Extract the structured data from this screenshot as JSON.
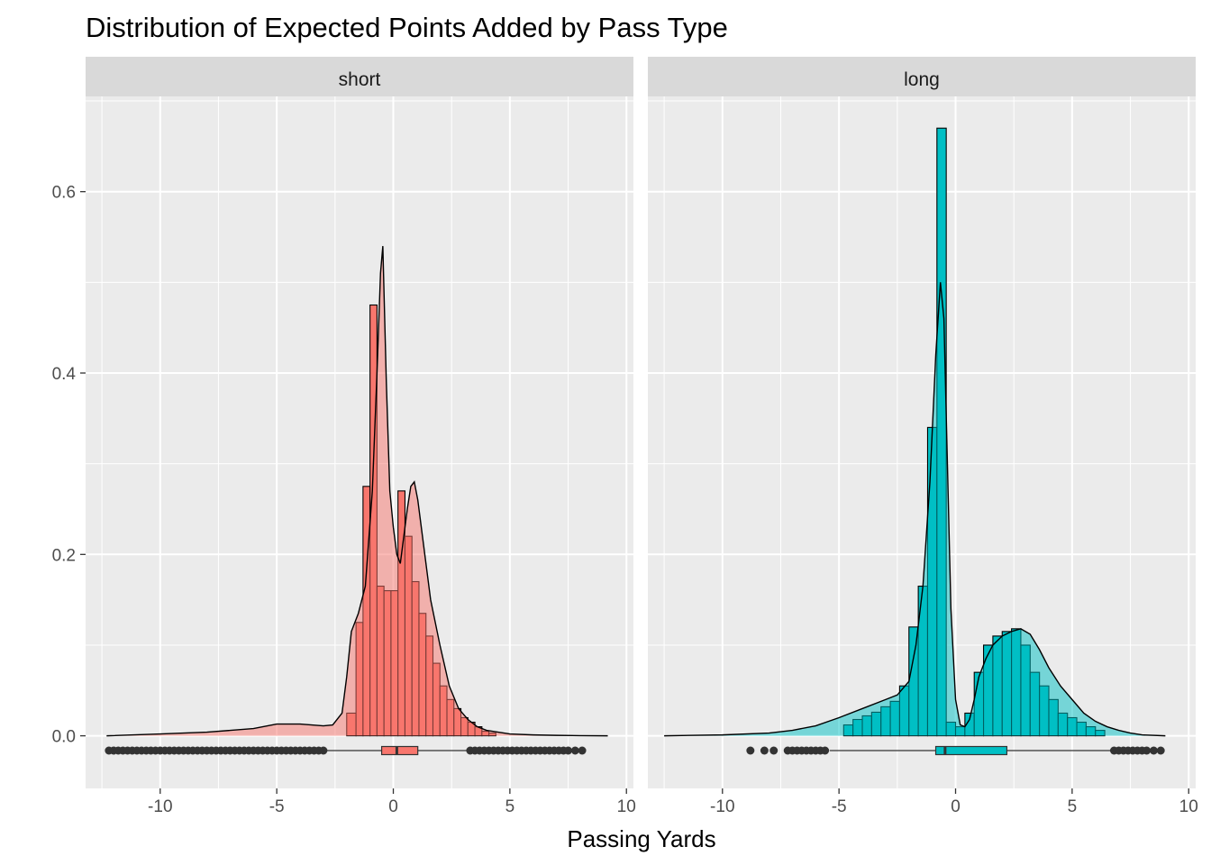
{
  "chart_data": {
    "type": "histogram",
    "title": "Distribution of Expected Points Added by Pass Type",
    "xlabel": "Passing Yards",
    "ylabel": "",
    "xlim": [
      -13.2,
      10.3
    ],
    "ylim": [
      -0.058,
      0.705
    ],
    "x_ticks": [
      -10,
      -5,
      0,
      5,
      10
    ],
    "x_tick_labels": [
      "-10",
      "-5",
      "0",
      "5",
      "10"
    ],
    "y_ticks": [
      0.0,
      0.2,
      0.4,
      0.6
    ],
    "y_tick_labels": [
      "0.0",
      "0.2",
      "0.4",
      "0.6"
    ],
    "grid": true,
    "panels": [
      {
        "name": "short",
        "color": "#F8766D",
        "histogram": {
          "bin_edges": [
            -2.0,
            -1.6,
            -1.3,
            -1.0,
            -0.7,
            -0.4,
            -0.1,
            0.2,
            0.5,
            0.8,
            1.1,
            1.4,
            1.7,
            2.0,
            2.3,
            2.6,
            2.9,
            3.2,
            3.5,
            3.8,
            4.1,
            4.4
          ],
          "density": [
            0.025,
            0.125,
            0.275,
            0.475,
            0.165,
            0.16,
            0.16,
            0.27,
            0.22,
            0.17,
            0.135,
            0.11,
            0.08,
            0.055,
            0.04,
            0.03,
            0.02,
            0.015,
            0.01,
            0.005,
            0.003
          ]
        },
        "density_curve": {
          "x": [
            -12.3,
            -10,
            -8,
            -6,
            -5,
            -4,
            -3,
            -2.6,
            -2.2,
            -2.0,
            -1.8,
            -1.5,
            -1.2,
            -0.9,
            -0.7,
            -0.55,
            -0.45,
            -0.3,
            -0.15,
            0,
            0.15,
            0.3,
            0.45,
            0.6,
            0.75,
            0.9,
            1.05,
            1.3,
            1.6,
            2.0,
            2.4,
            2.8,
            3.2,
            3.6,
            4.0,
            4.5,
            5.0,
            6,
            7,
            8,
            9.2
          ],
          "y": [
            0.0,
            0.002,
            0.004,
            0.008,
            0.013,
            0.013,
            0.011,
            0.012,
            0.025,
            0.065,
            0.115,
            0.135,
            0.165,
            0.27,
            0.4,
            0.51,
            0.54,
            0.39,
            0.27,
            0.23,
            0.2,
            0.19,
            0.22,
            0.25,
            0.275,
            0.28,
            0.26,
            0.21,
            0.15,
            0.1,
            0.055,
            0.03,
            0.018,
            0.01,
            0.006,
            0.004,
            0.002,
            0.001,
            0.0005,
            0.0002,
            0.0
          ]
        },
        "boxplot": {
          "lower_whisker": -2.95,
          "q1": -0.5,
          "median": 0.15,
          "q3": 1.05,
          "upper_whisker": 3.25
        },
        "outliers": [
          -12.2,
          -12.0,
          -11.8,
          -11.6,
          -11.4,
          -11.2,
          -11.0,
          -10.8,
          -10.6,
          -10.4,
          -10.2,
          -10.0,
          -9.8,
          -9.6,
          -9.4,
          -9.2,
          -9.0,
          -8.8,
          -8.6,
          -8.4,
          -8.2,
          -8.0,
          -7.8,
          -7.6,
          -7.4,
          -7.2,
          -7.0,
          -6.8,
          -6.6,
          -6.4,
          -6.2,
          -6.0,
          -5.8,
          -5.6,
          -5.4,
          -5.2,
          -5.0,
          -4.8,
          -4.6,
          -4.4,
          -4.2,
          -4.0,
          -3.8,
          -3.6,
          -3.4,
          -3.2,
          -3.0,
          3.3,
          3.5,
          3.7,
          3.9,
          4.1,
          4.3,
          4.5,
          4.7,
          4.9,
          5.1,
          5.3,
          5.5,
          5.7,
          5.9,
          6.1,
          6.3,
          6.5,
          6.7,
          6.9,
          7.1,
          7.3,
          7.5,
          7.8,
          8.1
        ]
      },
      {
        "name": "long",
        "color": "#00BFC4",
        "histogram": {
          "bin_edges": [
            -4.8,
            -4.4,
            -4.0,
            -3.6,
            -3.2,
            -2.8,
            -2.4,
            -2.0,
            -1.6,
            -1.2,
            -0.8,
            -0.4,
            0.0,
            0.4,
            0.8,
            1.2,
            1.6,
            2.0,
            2.4,
            2.8,
            3.2,
            3.6,
            4.0,
            4.4,
            4.8,
            5.2,
            5.6,
            6.0,
            6.4
          ],
          "density": [
            0.012,
            0.018,
            0.022,
            0.026,
            0.032,
            0.038,
            0.055,
            0.12,
            0.165,
            0.34,
            0.67,
            0.015,
            0.01,
            0.025,
            0.07,
            0.1,
            0.11,
            0.115,
            0.118,
            0.1,
            0.07,
            0.055,
            0.04,
            0.025,
            0.02,
            0.015,
            0.01,
            0.006
          ]
        },
        "density_curve": {
          "x": [
            -12.5,
            -10,
            -8,
            -7,
            -6,
            -5,
            -4,
            -3,
            -2.5,
            -2,
            -1.7,
            -1.4,
            -1.1,
            -0.85,
            -0.65,
            -0.5,
            -0.35,
            -0.2,
            0,
            0.2,
            0.4,
            0.6,
            0.8,
            1.0,
            1.3,
            1.6,
            2.0,
            2.4,
            2.8,
            3.2,
            3.6,
            4.0,
            4.5,
            5.0,
            5.5,
            6,
            6.5,
            7,
            7.5,
            8,
            9.0
          ],
          "y": [
            0.0,
            0.001,
            0.003,
            0.006,
            0.011,
            0.02,
            0.03,
            0.04,
            0.045,
            0.06,
            0.1,
            0.165,
            0.28,
            0.42,
            0.5,
            0.46,
            0.3,
            0.14,
            0.04,
            0.012,
            0.01,
            0.018,
            0.04,
            0.065,
            0.085,
            0.1,
            0.11,
            0.115,
            0.118,
            0.112,
            0.095,
            0.075,
            0.055,
            0.04,
            0.025,
            0.016,
            0.01,
            0.006,
            0.003,
            0.001,
            0.0
          ]
        },
        "boxplot": {
          "lower_whisker": -5.4,
          "q1": -0.85,
          "median": -0.45,
          "q3": 2.2,
          "upper_whisker": 6.7
        },
        "outliers": [
          -8.8,
          -8.2,
          -7.8,
          -7.2,
          -7.0,
          -6.8,
          -6.6,
          -6.4,
          -6.2,
          -6.0,
          -5.8,
          -5.6,
          6.8,
          7.0,
          7.2,
          7.4,
          7.6,
          7.8,
          8.0,
          8.2,
          8.5,
          8.8
        ]
      }
    ]
  }
}
